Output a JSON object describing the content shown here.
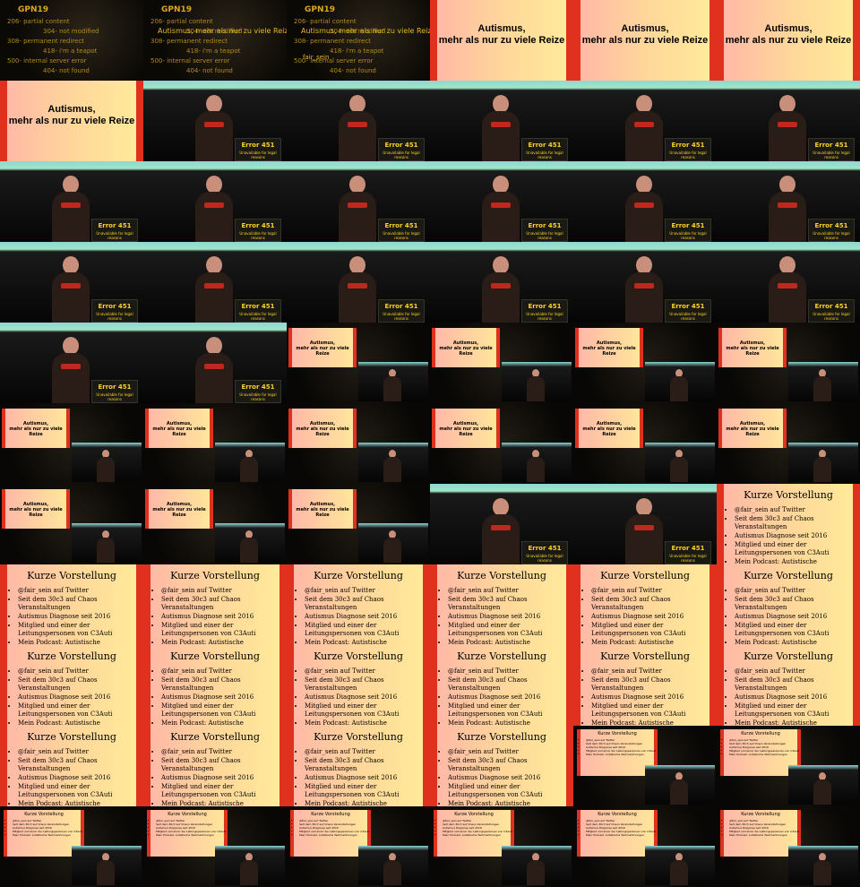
{
  "intro": {
    "label": "GPN19",
    "title": "Autismus, mehr als nur zu viele Reize",
    "speaker": "fair_sein",
    "status_codes": [
      "206- partial content",
      "304- not modified",
      "308- permanent redirect",
      "418- i'm a teapot",
      "500- internal server error",
      "404- not found"
    ]
  },
  "slide_title": {
    "line1": "Autismus,",
    "line2": "mehr als nur zu viele Reize"
  },
  "stage": {
    "error_title": "Error 451",
    "error_sub": "Unavailable for legal reasons"
  },
  "slide_list": {
    "title": "Kurze Vorstellung",
    "items": [
      "@fair_sein auf Twitter",
      "Seit dem 30c3 auf Chaos Veranstaltungen",
      "Autismus Diagnose seit 2016",
      "Mitglied und einer der Leitungspersonen von C3Auti",
      "Mein Podcast: Autistische Wahrnehmungen"
    ]
  },
  "layout_sequence": [
    "intro",
    "intro",
    "intro",
    "title",
    "title",
    "title",
    "title",
    "stage",
    "stage",
    "stage",
    "stage",
    "stage",
    "stage",
    "stage",
    "stage",
    "stage",
    "stage",
    "stage",
    "stage",
    "stage",
    "stage",
    "stage",
    "stage",
    "stage",
    "stage",
    "stage",
    "combo-title",
    "combo-title",
    "combo-title",
    "combo-title",
    "combo-title",
    "combo-title",
    "combo-title",
    "combo-title",
    "combo-title",
    "combo-title",
    "combo-title",
    "combo-title",
    "combo-title",
    "stage",
    "stage",
    "list",
    "list",
    "list",
    "list",
    "list",
    "list",
    "list",
    "list",
    "list",
    "list",
    "list",
    "list",
    "list",
    "list",
    "list",
    "list",
    "list",
    "combo-list",
    "combo-list",
    "combo-list",
    "combo-list",
    "combo-list",
    "combo-list",
    "combo-list",
    "combo-list"
  ]
}
